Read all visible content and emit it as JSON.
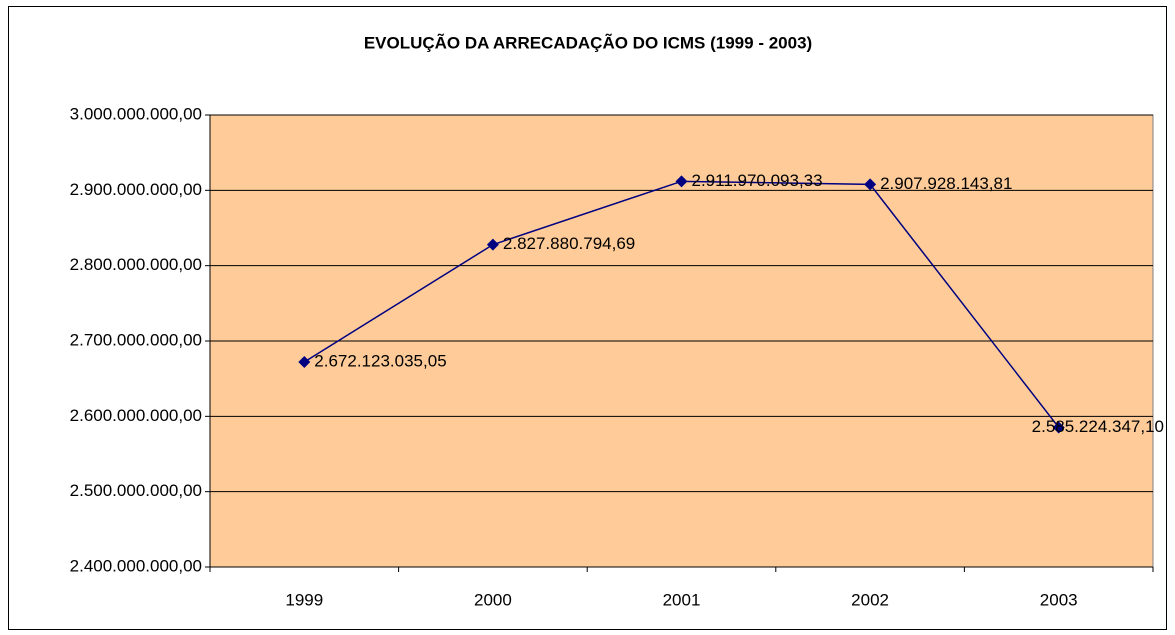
{
  "chart_data": {
    "type": "line",
    "title": "EVOLUÇÃO DA ARRECADAÇÃO DO ICMS (1999 - 2003)",
    "categories": [
      "1999",
      "2000",
      "2001",
      "2002",
      "2003"
    ],
    "series": [
      {
        "name": "ICMS",
        "color": "#000080",
        "values": [
          2672123035.05,
          2827880794.69,
          2911970093.33,
          2907928143.81,
          2585224347.1
        ],
        "value_labels": [
          "2.672.123.035,05",
          "2.827.880.794,69",
          "2.911.970.093,33",
          "2.907.928.143,81",
          "2.585.224.347,10"
        ]
      }
    ],
    "ylim": [
      2400000000,
      3000000000
    ],
    "yticks": [
      {
        "value": 2400000000,
        "label": "2.400.000.000,00"
      },
      {
        "value": 2500000000,
        "label": "2.500.000.000,00"
      },
      {
        "value": 2600000000,
        "label": "2.600.000.000,00"
      },
      {
        "value": 2700000000,
        "label": "2.700.000.000,00"
      },
      {
        "value": 2800000000,
        "label": "2.800.000.000,00"
      },
      {
        "value": 2900000000,
        "label": "2.900.000.000,00"
      },
      {
        "value": 3000000000,
        "label": "3.000.000.000,00"
      }
    ],
    "grid": true,
    "plot_background": "#FFCC99"
  }
}
